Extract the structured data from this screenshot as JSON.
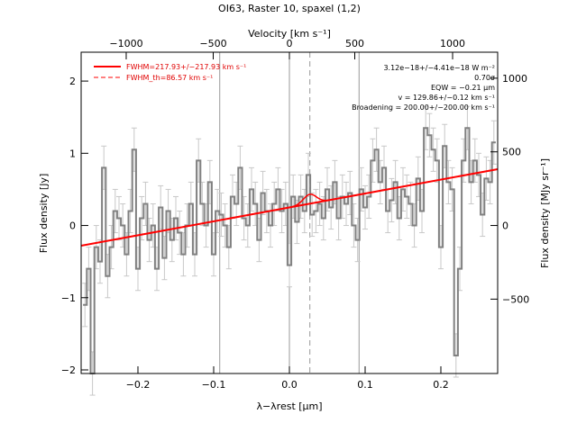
{
  "chart_data": {
    "type": "line",
    "title": "OI63, Raster 10, spaxel (1,2)",
    "xlabel": "λ−λrest [μm]",
    "ylabel": "Flux density [Jy]",
    "x2label": "Velocity [km s⁻¹]",
    "y2label": "Flux density [MJy sr⁻¹]",
    "xlim": [
      -0.275,
      0.275
    ],
    "ylim": [
      -2.05,
      2.4
    ],
    "x_ticks": [
      -0.2,
      -0.1,
      0.0,
      0.1,
      0.2
    ],
    "x_tick_labels": [
      "−0.2",
      "−0.1",
      "0.0",
      "0.1",
      "0.2"
    ],
    "y_ticks": [
      -2,
      -1,
      0,
      1,
      2
    ],
    "y_tick_labels": [
      "−2",
      "−1",
      "0",
      "1",
      "2"
    ],
    "top_ticks_um": [
      -0.2155,
      -0.1006,
      0.0,
      0.0863,
      0.2155
    ],
    "top_tick_labels": [
      "−1000",
      "−500",
      "0",
      "500",
      "1000"
    ],
    "right_ticks_jy": [
      -1.02,
      0.0,
      1.02,
      2.04
    ],
    "right_tick_labels": [
      "−500",
      "0",
      "500",
      "1000"
    ],
    "vlines_solid": [
      -0.092,
      0.0,
      0.092
    ],
    "vline_dashed": 0.027,
    "legend": [
      {
        "label": "FWHM=217.93+/−217.93 km s⁻¹",
        "style": "solid"
      },
      {
        "label": "FWHM_th=86.57 km s⁻¹",
        "style": "dashed"
      }
    ],
    "annotations": [
      "3.12e−18+/−4.41e−18 W m⁻²",
      "0.70σ",
      "EQW = −0.21 μm",
      "v = 129.86+/−0.12 km s⁻¹",
      "Broadening = 200.00+/−200.00 km s⁻¹"
    ],
    "series": [
      {
        "style": "step",
        "x": [
          -0.27,
          -0.265,
          -0.26,
          -0.255,
          -0.25,
          -0.245,
          -0.24,
          -0.235,
          -0.23,
          -0.225,
          -0.22,
          -0.215,
          -0.21,
          -0.205,
          -0.2,
          -0.195,
          -0.19,
          -0.185,
          -0.18,
          -0.175,
          -0.17,
          -0.165,
          -0.16,
          -0.155,
          -0.15,
          -0.145,
          -0.14,
          -0.135,
          -0.13,
          -0.125,
          -0.12,
          -0.115,
          -0.11,
          -0.105,
          -0.1,
          -0.095,
          -0.09,
          -0.085,
          -0.08,
          -0.075,
          -0.07,
          -0.065,
          -0.06,
          -0.055,
          -0.05,
          -0.045,
          -0.04,
          -0.035,
          -0.03,
          -0.025,
          -0.02,
          -0.015,
          -0.01,
          -0.005,
          0.0,
          0.005,
          0.01,
          0.015,
          0.02,
          0.025,
          0.03,
          0.035,
          0.04,
          0.045,
          0.05,
          0.055,
          0.06,
          0.065,
          0.07,
          0.075,
          0.08,
          0.085,
          0.09,
          0.095,
          0.1,
          0.105,
          0.11,
          0.115,
          0.12,
          0.125,
          0.13,
          0.135,
          0.14,
          0.145,
          0.15,
          0.155,
          0.16,
          0.165,
          0.17,
          0.175,
          0.18,
          0.185,
          0.19,
          0.195,
          0.2,
          0.205,
          0.21,
          0.215,
          0.22,
          0.225,
          0.23,
          0.235,
          0.24,
          0.245,
          0.25,
          0.255,
          0.26,
          0.265,
          0.27
        ],
        "y": [
          -1.1,
          -0.6,
          -2.05,
          -0.3,
          -0.5,
          0.8,
          -0.7,
          -0.3,
          0.2,
          0.1,
          0.0,
          -0.4,
          0.2,
          1.05,
          -0.6,
          0.1,
          0.3,
          -0.2,
          0.0,
          -0.6,
          0.25,
          -0.45,
          0.2,
          -0.2,
          0.1,
          -0.1,
          -0.4,
          0.0,
          0.3,
          -0.4,
          0.9,
          0.3,
          0.0,
          0.6,
          -0.4,
          0.2,
          0.15,
          0.0,
          -0.3,
          0.4,
          0.3,
          0.8,
          0.1,
          0.0,
          0.5,
          0.3,
          -0.2,
          0.45,
          0.2,
          0.0,
          0.3,
          0.5,
          0.2,
          0.3,
          -0.55,
          0.4,
          0.05,
          0.4,
          0.2,
          0.7,
          0.15,
          0.2,
          0.3,
          0.1,
          0.5,
          0.25,
          0.6,
          0.1,
          0.4,
          0.3,
          0.45,
          0.0,
          -0.2,
          0.5,
          0.25,
          0.4,
          0.9,
          1.05,
          0.6,
          0.8,
          0.2,
          0.35,
          0.6,
          0.1,
          0.5,
          0.4,
          0.3,
          0.0,
          0.65,
          0.2,
          1.35,
          1.25,
          1.05,
          0.9,
          -0.3,
          1.1,
          0.6,
          0.5,
          -1.8,
          -0.6,
          0.9,
          1.35,
          0.6,
          0.9,
          0.7,
          0.15,
          0.65,
          0.6,
          1.15
        ],
        "yerr": 0.3,
        "color": "#808080"
      },
      {
        "style": "line",
        "x": [
          -0.275,
          0.275
        ],
        "y": [
          -0.28,
          0.78
        ],
        "color": "#ff0000"
      }
    ]
  }
}
